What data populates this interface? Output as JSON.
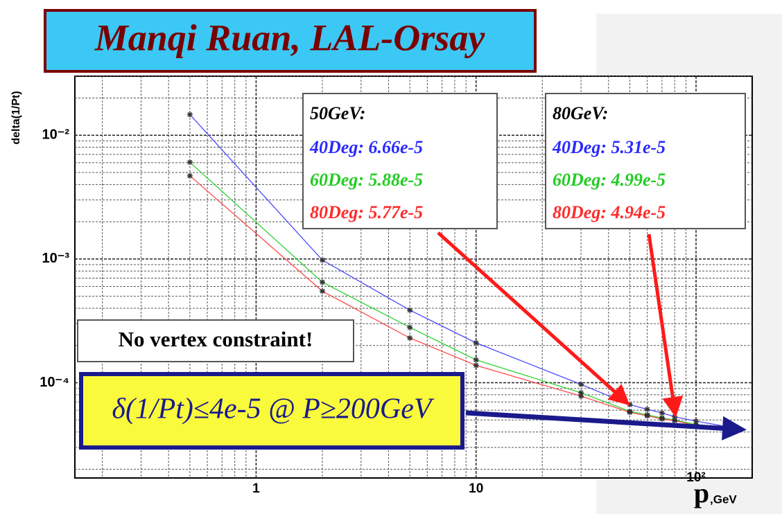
{
  "chart_data": {
    "type": "line",
    "title": "Manqi Ruan, LAL-Orsay",
    "y_label": "delta(1/Pt)",
    "x_label": "p",
    "x_label_unit": ",GeV",
    "x": [
      0.5,
      2,
      5,
      10,
      30,
      50,
      60,
      70,
      80,
      100,
      150
    ],
    "series": [
      {
        "color": "#4a4aff",
        "values": [
          0.0147,
          0.00098,
          0.000386,
          0.00021,
          9.7e-05,
          6.66e-05,
          6.1e-05,
          5.7e-05,
          5.31e-05,
          4.9e-05,
          4.3e-05
        ]
      },
      {
        "color": "#30d030",
        "values": [
          0.00605,
          0.00065,
          0.00028,
          0.000153,
          8.3e-05,
          5.88e-05,
          5.5e-05,
          5.2e-05,
          4.99e-05,
          4.6e-05,
          4.2e-05
        ]
      },
      {
        "color": "#ff4a4a",
        "values": [
          0.0047,
          0.00055,
          0.00023,
          0.000138,
          7.8e-05,
          5.77e-05,
          5.4e-05,
          5.1e-05,
          4.94e-05,
          4.5e-05,
          4.1e-05
        ]
      }
    ],
    "log_x": true,
    "log_y": true,
    "grid": true,
    "xlim": [
      0.15,
      180
    ],
    "ylim": [
      1.7e-05,
      0.03
    ],
    "xticks": [
      1,
      10,
      {
        "value": 100,
        "label": "10²"
      }
    ],
    "yticks": [
      {
        "value": 0.0001,
        "label": "10⁻⁴"
      },
      {
        "value": 0.001,
        "label": "10⁻³"
      },
      {
        "value": 0.01,
        "label": "10⁻²"
      }
    ],
    "xminor": [
      0.2,
      0.3,
      0.4,
      0.5,
      0.6,
      0.7,
      0.8,
      0.9,
      2,
      3,
      4,
      5,
      6,
      7,
      8,
      9,
      20,
      30,
      40,
      50,
      60,
      70,
      80,
      90
    ],
    "yminor": [
      2e-05,
      3e-05,
      4e-05,
      5e-05,
      6e-05,
      7e-05,
      8e-05,
      9e-05,
      0.0002,
      0.0003,
      0.0004,
      0.0005,
      0.0006,
      0.0007,
      0.0008,
      0.0009,
      0.002,
      0.003,
      0.004,
      0.005,
      0.006,
      0.007,
      0.008,
      0.009,
      0.02,
      0.03
    ],
    "boxes": [
      {
        "title": "50GeV:",
        "lines": [
          {
            "text": "40Deg: 6.66e-5",
            "color": "#2a2aff"
          },
          {
            "text": "60Deg: 5.88e-5",
            "color": "#22cc22"
          },
          {
            "text": "80Deg: 5.77e-5",
            "color": "#ff2a2a"
          }
        ]
      },
      {
        "title": "80GeV:",
        "lines": [
          {
            "text": "40Deg: 5.31e-5",
            "color": "#2a2aff"
          },
          {
            "text": "60Deg: 4.99e-5",
            "color": "#22cc22"
          },
          {
            "text": "80Deg: 4.94e-5",
            "color": "#ff2a2a"
          }
        ]
      }
    ],
    "note": "No vertex constraint!",
    "highlight": "δ(1/Pt)≤4e-5 @ P≥200GeV"
  }
}
